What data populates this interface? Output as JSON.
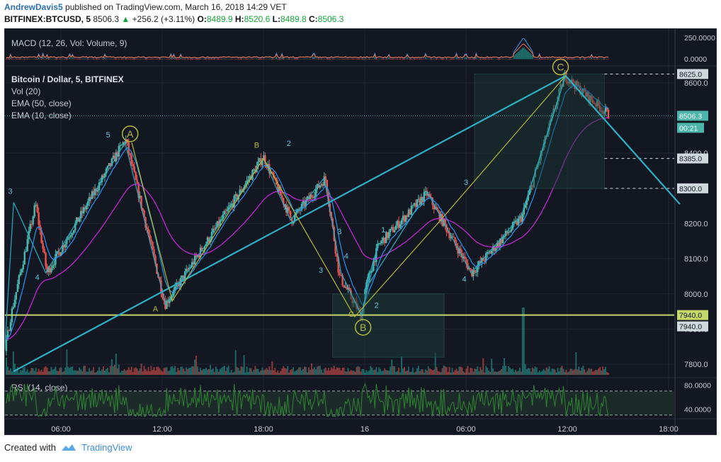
{
  "header": {
    "author": "AndrewDavis5",
    "published": "published on TradingView.com, March 16, 2018 14:29 VET",
    "symbol": "BITFINEX:BTCUSD, 5",
    "last": "8506.3",
    "change": "+256.2 (+3.11%)",
    "o_label": "O:",
    "o": "8489.9",
    "h_label": "H:",
    "h": "8520.6",
    "l_label": "L:",
    "l": "8489.8",
    "c_label": "C:",
    "c": "8506.3"
  },
  "footer": {
    "created_with": "Created with",
    "brand": "TradingView"
  },
  "colors": {
    "bg": "#131722",
    "up": "#4db6ac",
    "down": "#ef5350",
    "ema50": "#c026d3",
    "ema10": "#2196f3",
    "wave": "#2bb0c7",
    "pattern": "#b5b83a",
    "rsi": "#2e7d32",
    "volume_up": "#26a69a",
    "volume_down": "#ef5350"
  },
  "chart_data": [
    {
      "type": "candlestick",
      "title": "Bitcoin / Dollar, 5, BITFINEX",
      "indicators": [
        "Vol (20)",
        "EMA (50, close)",
        "EMA (10, close)"
      ],
      "x_ticks": [
        "06:00",
        "12:00",
        "18:00",
        "16",
        "06:00",
        "12:00",
        "18:00"
      ],
      "y_ticks": [
        "8600.0",
        "8500.0",
        "8400.0",
        "8300.0",
        "8200.0",
        "8100.0",
        "8000.0",
        "7900.0",
        "7800.0"
      ],
      "ylim": [
        7770,
        8640
      ],
      "price_labels": [
        {
          "text": "8625.0",
          "value": 8625
        },
        {
          "text": "8506.3",
          "value": 8506.3,
          "highlight": true
        },
        {
          "text": "00:21",
          "sub": true,
          "value": 8506.3
        },
        {
          "text": "8385.0",
          "value": 8385
        },
        {
          "text": "8300.0",
          "value": 8300
        },
        {
          "text": "7940.0",
          "value": 7940,
          "level": true
        },
        {
          "text": "7940.0",
          "value": 7940
        }
      ],
      "key_points": [
        {
          "time": "02:30",
          "price": 7780
        },
        {
          "time": "03:00",
          "price": 7930
        },
        {
          "time": "04:30",
          "price": 8255
        },
        {
          "time": "05:10",
          "price": 8060
        },
        {
          "time": "09:50",
          "price": 8440
        },
        {
          "time": "12:10",
          "price": 7970
        },
        {
          "time": "18:00",
          "price": 8390
        },
        {
          "time": "19:40",
          "price": 8210
        },
        {
          "time": "21:40",
          "price": 8330
        },
        {
          "time": "22:30",
          "price": 8050
        },
        {
          "time": "23:50",
          "price": 7935
        },
        {
          "time": "00:50",
          "price": 8140
        },
        {
          "time": "00:00 (16)",
          "price": 8010
        },
        {
          "time": "03:40",
          "price": 8285
        },
        {
          "time": "06:20",
          "price": 8060
        },
        {
          "time": "09:20",
          "price": 8220
        },
        {
          "time": "11:50",
          "price": 8620
        },
        {
          "time": "14:30",
          "price": 8506.3
        }
      ],
      "wave_labels": [
        "1",
        "2",
        "3",
        "4",
        "5",
        "A",
        "B",
        "C",
        "3",
        "4",
        "1",
        "2",
        "3",
        "4"
      ],
      "circled_labels": [
        "A",
        "B",
        "C"
      ],
      "pattern_labels": [
        "A",
        "B",
        "C"
      ]
    },
    {
      "type": "line",
      "title": "MACD (12, 26, Vol: Volume, 9)",
      "y_ticks": [
        "250.0000",
        "0.0000"
      ]
    },
    {
      "type": "line",
      "title": "RSI (14, close)",
      "y_ticks": [
        "80.0000",
        "40.0000"
      ]
    }
  ]
}
